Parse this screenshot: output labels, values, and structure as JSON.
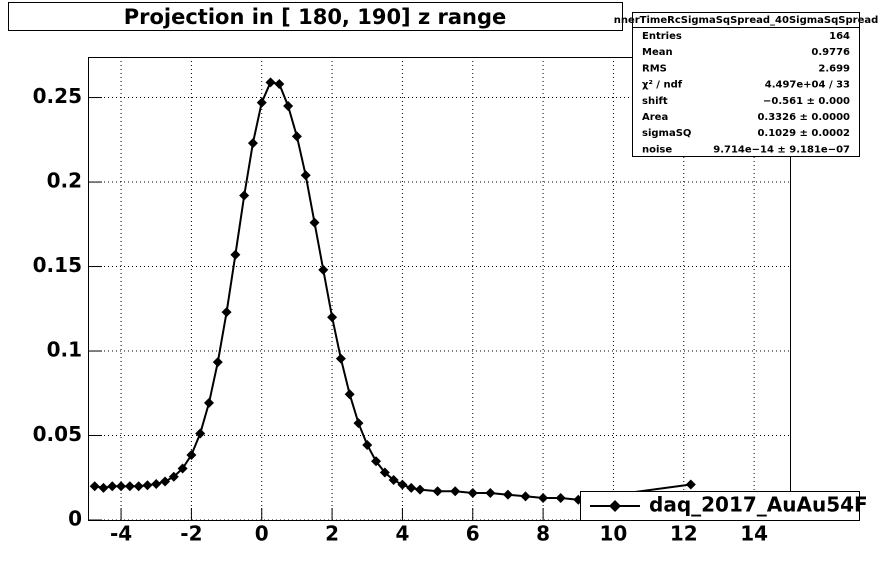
{
  "chart_data": {
    "type": "scatter",
    "title": "Projection in [ 180, 190] z range",
    "x": [
      -4.75,
      -4.5,
      -4.25,
      -4.0,
      -3.75,
      -3.5,
      -3.25,
      -3.0,
      -2.75,
      -2.5,
      -2.25,
      -2.0,
      -1.75,
      -1.5,
      -1.25,
      -1.0,
      -0.75,
      -0.5,
      -0.25,
      0.0,
      0.25,
      0.5,
      0.75,
      1.0,
      1.25,
      1.5,
      1.75,
      2.0,
      2.25,
      2.5,
      2.75,
      3.0,
      3.25,
      3.5,
      3.75,
      4.0,
      4.25,
      4.5,
      5.0,
      5.5,
      6.0,
      6.5,
      7.0,
      7.5,
      8.0,
      8.5,
      9.0,
      12.2
    ],
    "series": [
      {
        "name": "daq_2017_AuAu54F",
        "color": "#000000",
        "values": [
          0.02,
          0.019,
          0.02,
          0.02,
          0.02,
          0.02,
          0.0206,
          0.0213,
          0.0228,
          0.0256,
          0.0305,
          0.0385,
          0.0512,
          0.0693,
          0.0934,
          0.123,
          0.157,
          0.192,
          0.223,
          0.247,
          0.259,
          0.258,
          0.245,
          0.227,
          0.204,
          0.176,
          0.148,
          0.12,
          0.0955,
          0.0744,
          0.0573,
          0.0444,
          0.0348,
          0.0281,
          0.0237,
          0.0209,
          0.019,
          0.018,
          0.017,
          0.017,
          0.016,
          0.016,
          0.015,
          0.014,
          0.013,
          0.013,
          0.012,
          0.021
        ]
      }
    ],
    "xlim": [
      -4.94,
      15.02
    ],
    "xticks": [
      -4,
      -2,
      0,
      2,
      4,
      6,
      8,
      10,
      12,
      14
    ],
    "ylim": [
      0,
      0.274
    ],
    "yticks": [
      0,
      0.05,
      0.1,
      0.15,
      0.2,
      0.25
    ],
    "grid": true,
    "legend": "lower right",
    "stats": {
      "title": "nnerTimeRcSigmaSqSpread_40SigmaSqSpread",
      "rows": [
        [
          "Entries",
          "164"
        ],
        [
          "Mean",
          "0.9776"
        ],
        [
          "RMS",
          "2.699"
        ],
        [
          "χ² / ndf",
          "4.497e+04 / 33"
        ],
        [
          "shift",
          "−0.561 ± 0.000"
        ],
        [
          "Area",
          "0.3326 ± 0.0000"
        ],
        [
          "sigmaSQ",
          "0.1029 ± 0.0002"
        ],
        [
          "noise",
          "9.714e−14 ± 9.181e−07"
        ]
      ]
    }
  }
}
